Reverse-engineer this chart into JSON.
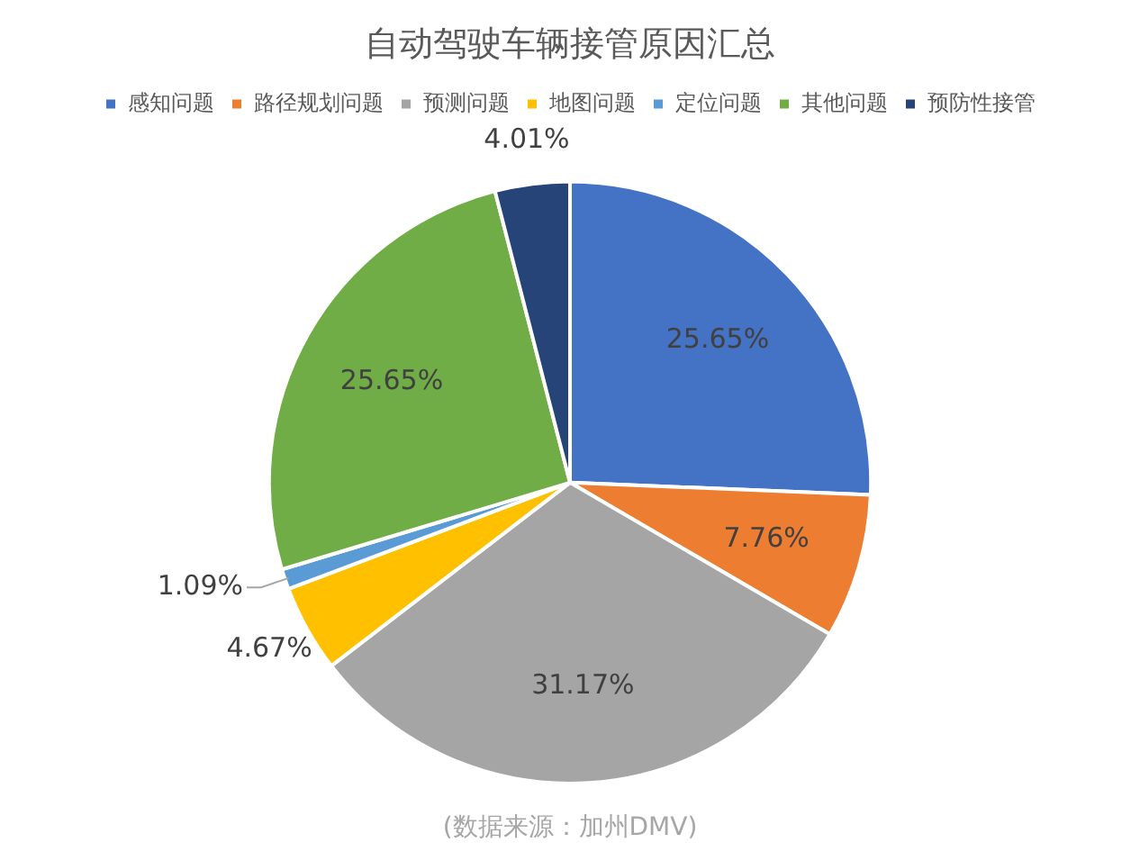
{
  "chart_data": {
    "type": "pie",
    "title": "自动驾驶车辆接管原因汇总",
    "categories": [
      "感知问题",
      "路径规划问题",
      "预测问题",
      "地图问题",
      "定位问题",
      "其他问题",
      "预防性接管"
    ],
    "values": [
      25.65,
      7.76,
      31.17,
      4.67,
      1.09,
      25.65,
      4.01
    ],
    "colors": [
      "#4472c4",
      "#ed7d31",
      "#a5a5a5",
      "#ffc000",
      "#5b9bd5",
      "#70ad47",
      "#264478"
    ],
    "value_labels": [
      "25.65%",
      "7.76%",
      "31.17%",
      "4.67%",
      "1.09%",
      "25.65%",
      "4.01%"
    ],
    "legend": "top",
    "annotations": [
      "(数据来源：加州DMV)"
    ]
  }
}
